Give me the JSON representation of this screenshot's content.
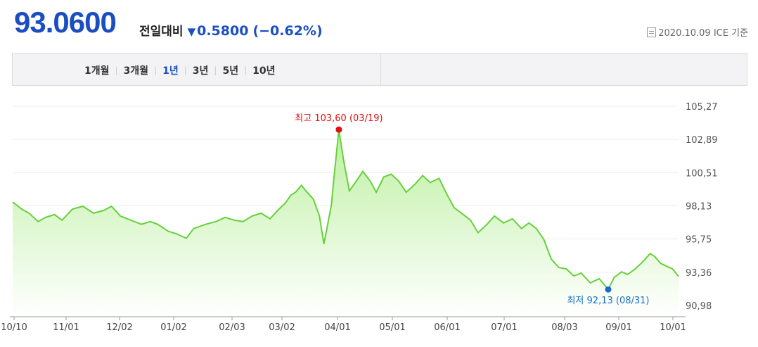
{
  "header": {
    "price": "93.0600",
    "change_label": "전일대비",
    "change_value": "0.5800",
    "change_pct": "(−0.62%)",
    "direction_icon": "down-triangle-icon",
    "date_source": "2020.10.09 ICE 기준"
  },
  "tabs": [
    {
      "label": "1개월",
      "active": false
    },
    {
      "label": "3개월",
      "active": false
    },
    {
      "label": "1년",
      "active": true
    },
    {
      "label": "3년",
      "active": false
    },
    {
      "label": "5년",
      "active": false
    },
    {
      "label": "10년",
      "active": false
    }
  ],
  "colors": {
    "accent": "#1a4ec2",
    "line": "#66d13a",
    "fill_top": "#b8ef9a",
    "high": "#e01010",
    "low": "#1a6ec8"
  },
  "chart_data": {
    "type": "area",
    "title": "",
    "xlabel": "",
    "ylabel": "",
    "ylim": [
      90.98,
      105.27
    ],
    "y_ticks": [
      "105.27",
      "102.89",
      "100.51",
      "98.13",
      "95.75",
      "93.36",
      "90.98"
    ],
    "x_ticks": [
      "10/10",
      "11/01",
      "12/02",
      "01/02",
      "02/03",
      "03/02",
      "04/01",
      "05/01",
      "06/01",
      "07/01",
      "08/03",
      "09/01",
      "10/01"
    ],
    "high": {
      "label": "최고 103.60 (03/19)",
      "value": 103.6,
      "date": "03/19"
    },
    "low": {
      "label": "최저 92.13 (08/31)",
      "value": 92.13,
      "date": "08/31"
    },
    "series": [
      {
        "values": [
          [
            0,
            98.4
          ],
          [
            6,
            97.9
          ],
          [
            11,
            97.6
          ],
          [
            17,
            97.0
          ],
          [
            22,
            97.3
          ],
          [
            28,
            97.5
          ],
          [
            33,
            97.1
          ],
          [
            40,
            97.9
          ],
          [
            47,
            98.1
          ],
          [
            54,
            97.6
          ],
          [
            61,
            97.8
          ],
          [
            66,
            98.1
          ],
          [
            72,
            97.4
          ],
          [
            79,
            97.1
          ],
          [
            86,
            96.8
          ],
          [
            92,
            97.0
          ],
          [
            97,
            96.8
          ],
          [
            104,
            96.3
          ],
          [
            110,
            96.1
          ],
          [
            116,
            95.8
          ],
          [
            121,
            96.5
          ],
          [
            129,
            96.8
          ],
          [
            136,
            97.0
          ],
          [
            142,
            97.3
          ],
          [
            148,
            97.1
          ],
          [
            154,
            97.0
          ],
          [
            160,
            97.4
          ],
          [
            166,
            97.6
          ],
          [
            172,
            97.2
          ],
          [
            178,
            97.9
          ],
          [
            182,
            98.3
          ],
          [
            186,
            98.9
          ],
          [
            189,
            99.1
          ],
          [
            193,
            99.6
          ],
          [
            196,
            99.2
          ],
          [
            201,
            98.6
          ],
          [
            205,
            97.4
          ],
          [
            208,
            95.4
          ],
          [
            210,
            96.5
          ],
          [
            213,
            98.2
          ],
          [
            215,
            100.4
          ],
          [
            218,
            103.6
          ],
          [
            221,
            101.5
          ],
          [
            225,
            99.2
          ],
          [
            229,
            99.8
          ],
          [
            234,
            100.6
          ],
          [
            239,
            99.9
          ],
          [
            243,
            99.1
          ],
          [
            248,
            100.2
          ],
          [
            253,
            100.4
          ],
          [
            258,
            99.9
          ],
          [
            263,
            99.1
          ],
          [
            269,
            99.7
          ],
          [
            274,
            100.3
          ],
          [
            279,
            99.8
          ],
          [
            285,
            100.1
          ],
          [
            290,
            99.0
          ],
          [
            295,
            98.0
          ],
          [
            300,
            97.6
          ],
          [
            306,
            97.1
          ],
          [
            311,
            96.2
          ],
          [
            317,
            96.8
          ],
          [
            322,
            97.4
          ],
          [
            328,
            96.9
          ],
          [
            334,
            97.2
          ],
          [
            340,
            96.5
          ],
          [
            345,
            96.9
          ],
          [
            350,
            96.5
          ],
          [
            355,
            95.7
          ],
          [
            360,
            94.3
          ],
          [
            365,
            93.7
          ],
          [
            370,
            93.6
          ],
          [
            375,
            93.1
          ],
          [
            380,
            93.3
          ],
          [
            386,
            92.6
          ],
          [
            392,
            92.9
          ],
          [
            398,
            92.13
          ],
          [
            402,
            93.0
          ],
          [
            407,
            93.4
          ],
          [
            411,
            93.2
          ],
          [
            416,
            93.6
          ],
          [
            421,
            94.1
          ],
          [
            426,
            94.7
          ],
          [
            429,
            94.5
          ],
          [
            433,
            94.0
          ],
          [
            437,
            93.8
          ],
          [
            441,
            93.6
          ],
          [
            445,
            93.06
          ]
        ]
      }
    ]
  }
}
